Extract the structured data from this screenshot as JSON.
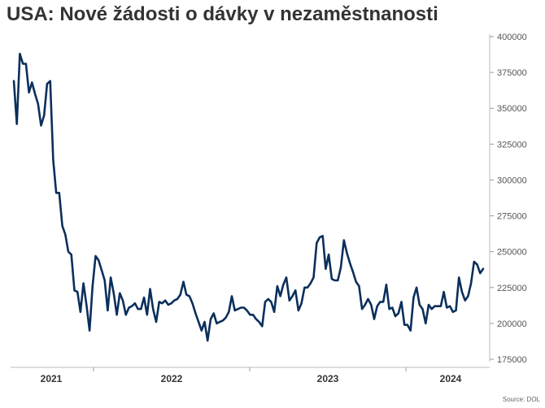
{
  "title": "USA: Nové žádosti o dávky v nezaměstnanosti",
  "source": "Source: DOL",
  "chart_data": {
    "type": "line",
    "title": "USA: Nové žádosti o dávky v nezaměstnanosti",
    "xlabel": "",
    "ylabel": "",
    "ylim": [
      175000,
      400000
    ],
    "y_ticks": [
      "175000",
      "200000",
      "225000",
      "250000",
      "275000",
      "300000",
      "325000",
      "350000",
      "375000",
      "400000"
    ],
    "y_axis_position": "right",
    "x_tick_labels": [
      "2021",
      "2022",
      "2023",
      "2024"
    ],
    "line_color": "#0b2f5b",
    "grid": false,
    "legend": "none",
    "series": [
      {
        "values": [
          369000,
          339000,
          388000,
          381000,
          381000,
          361000,
          368000,
          360000,
          353000,
          338000,
          345000,
          367000,
          369000,
          314000,
          291000,
          291000,
          268000,
          262000,
          250000,
          248000,
          223000,
          222000,
          208000,
          228000,
          213000,
          195000,
          226000,
          247000,
          244000,
          237000,
          230000,
          209000,
          232000,
          221000,
          206000,
          221000,
          216000,
          206000,
          211000,
          212000,
          214000,
          210000,
          210000,
          218000,
          206000,
          224000,
          210000,
          201000,
          215000,
          214000,
          216000,
          213000,
          214000,
          216000,
          217000,
          220000,
          229000,
          220000,
          219000,
          214000,
          207000,
          201000,
          195000,
          201000,
          188000,
          203000,
          207000,
          200000,
          201000,
          202000,
          204000,
          208000,
          219000,
          209000,
          210000,
          211000,
          211000,
          209000,
          206000,
          206000,
          203000,
          201000,
          198000,
          215000,
          217000,
          215000,
          208000,
          226000,
          219000,
          227000,
          232000,
          216000,
          219000,
          223000,
          209000,
          214000,
          225000,
          225000,
          228000,
          232000,
          256000,
          260000,
          261000,
          238000,
          248000,
          231000,
          230000,
          230000,
          239000,
          258000,
          249000,
          242000,
          236000,
          229000,
          226000,
          210000,
          213000,
          217000,
          213000,
          203000,
          212000,
          215000,
          215000,
          227000,
          210000,
          211000,
          205000,
          207000,
          215000,
          199000,
          199000,
          195000,
          218000,
          225000,
          213000,
          210000,
          200000,
          213000,
          210000,
          212000,
          212000,
          212000,
          222000,
          211000,
          212000,
          208000,
          209000,
          232000,
          222000,
          216000,
          219000,
          228000,
          243000,
          241000,
          235000,
          238000
        ]
      }
    ]
  }
}
